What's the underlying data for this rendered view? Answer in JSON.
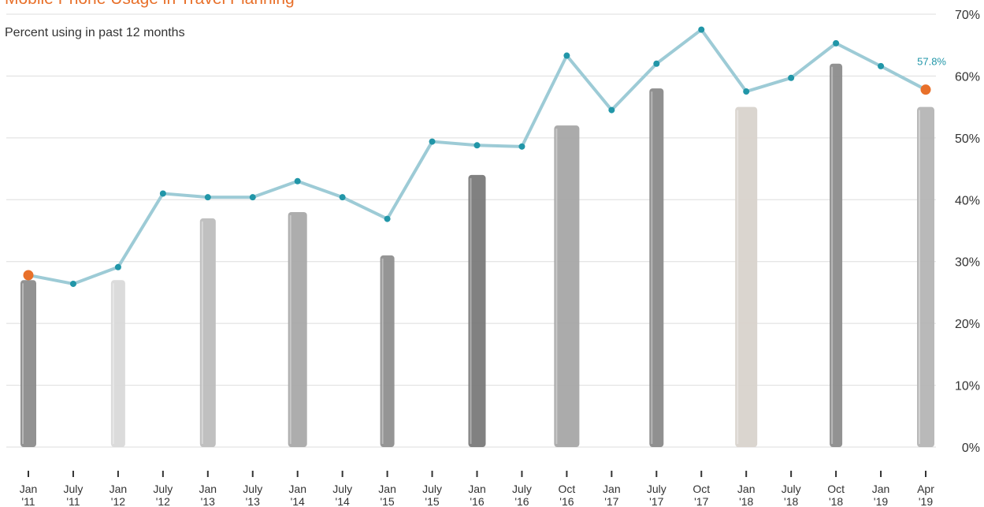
{
  "chart_data": {
    "type": "line",
    "title": "Mobile Phone Usage in Travel Planning",
    "subtitle": "Percent using in past 12 months",
    "xlabel": "",
    "ylabel": "",
    "ylim": [
      0,
      70
    ],
    "yticks": [
      "0%",
      "10%",
      "20%",
      "30%",
      "40%",
      "50%",
      "60%",
      "70%"
    ],
    "grid": true,
    "y_axis_side": "right",
    "categories": [
      [
        "Jan",
        "'11"
      ],
      [
        "July",
        "'11"
      ],
      [
        "Jan",
        "'12"
      ],
      [
        "July",
        "'12"
      ],
      [
        "Jan",
        "'13"
      ],
      [
        "July",
        "'13"
      ],
      [
        "Jan",
        "'14"
      ],
      [
        "July",
        "'14"
      ],
      [
        "Jan",
        "'15"
      ],
      [
        "July",
        "'15"
      ],
      [
        "Jan",
        "'16"
      ],
      [
        "July",
        "'16"
      ],
      [
        "Oct",
        "'16"
      ],
      [
        "Jan",
        "'17"
      ],
      [
        "July",
        "'17"
      ],
      [
        "Oct",
        "'17"
      ],
      [
        "Jan",
        "'18"
      ],
      [
        "July",
        "'18"
      ],
      [
        "Oct",
        "'18"
      ],
      [
        "Jan",
        "'19"
      ],
      [
        "Apr",
        "'19"
      ]
    ],
    "series": [
      {
        "values": [
          27.8,
          26.4,
          29.1,
          41.0,
          40.4,
          40.4,
          43.0,
          40.4,
          36.9,
          49.4,
          48.8,
          48.6,
          63.3,
          54.5,
          62.0,
          67.5,
          57.5,
          59.7,
          65.3,
          61.6,
          57.8
        ],
        "color": "#9dcbd6",
        "marker_color": "#2196a8",
        "highlight_color": "#e8702a",
        "highlight_points": [
          0,
          20
        ]
      }
    ],
    "data_labels": [
      {
        "index": 20,
        "text": "57.8%"
      }
    ],
    "title_color": "#e8702a",
    "label_color": "#2196a8",
    "background_art": "phone-silhouettes"
  }
}
